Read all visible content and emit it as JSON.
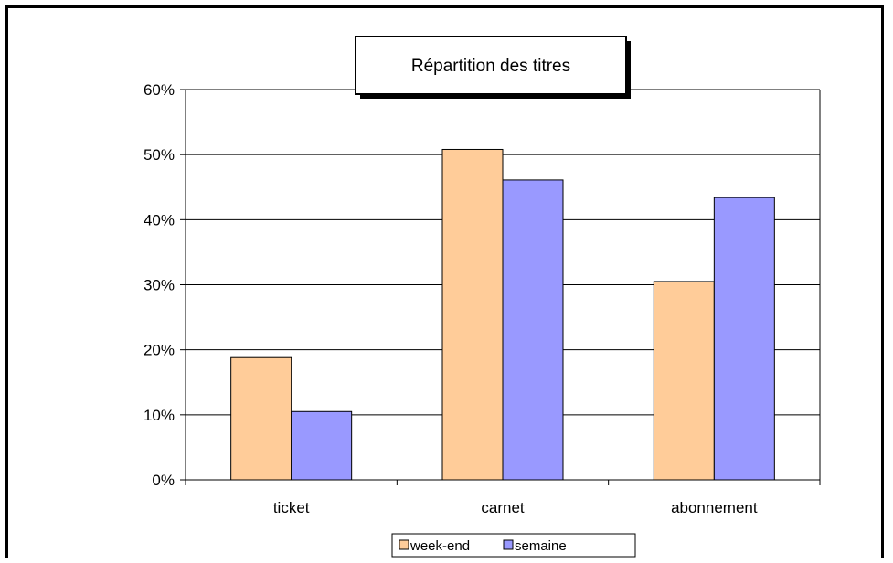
{
  "chart_data": {
    "type": "bar",
    "title": "Répartition des titres",
    "categories": [
      "ticket",
      "carnet",
      "abonnement"
    ],
    "series": [
      {
        "name": "week-end",
        "values": [
          18.8,
          50.8,
          30.5
        ],
        "color": "#ffcc99"
      },
      {
        "name": "semaine",
        "values": [
          10.5,
          46.1,
          43.4
        ],
        "color": "#9999ff"
      }
    ],
    "y_ticks": [
      "0%",
      "10%",
      "20%",
      "30%",
      "40%",
      "50%",
      "60%"
    ],
    "ylim": [
      0,
      60
    ],
    "y_unit": "%",
    "grid": true,
    "legend_position": "bottom"
  }
}
